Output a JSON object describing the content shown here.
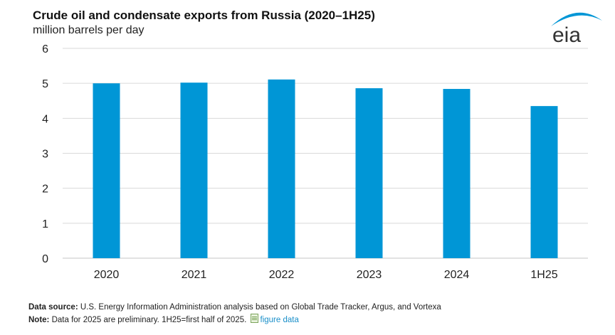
{
  "header": {
    "title": "Crude oil and condensate exports from Russia (2020–1H25)",
    "subtitle": "million barrels per day",
    "logo_text": "eia"
  },
  "footer": {
    "source_label": "Data source:",
    "source_text": "U.S. Energy Information Administration analysis based on Global Trade Tracker, Argus, and Vortexa",
    "note_label": "Note:",
    "note_text": "Data for 2025 are preliminary. 1H25=first half of 2025.",
    "figure_data_link": "figure data"
  },
  "colors": {
    "bar": "#0096d6",
    "grid": "#d9d9d9",
    "link": "#1a8fc9"
  },
  "chart_data": {
    "type": "bar",
    "title": "Crude oil and condensate exports from Russia (2020–1H25)",
    "ylabel": "million barrels per day",
    "xlabel": "",
    "categories": [
      "2020",
      "2021",
      "2022",
      "2023",
      "2024",
      "1H25"
    ],
    "values": [
      5.0,
      5.02,
      5.11,
      4.86,
      4.84,
      4.35
    ],
    "ylim": [
      0,
      6
    ],
    "yticks": [
      0,
      1,
      2,
      3,
      4,
      5,
      6
    ],
    "grid": true,
    "legend": "none"
  }
}
